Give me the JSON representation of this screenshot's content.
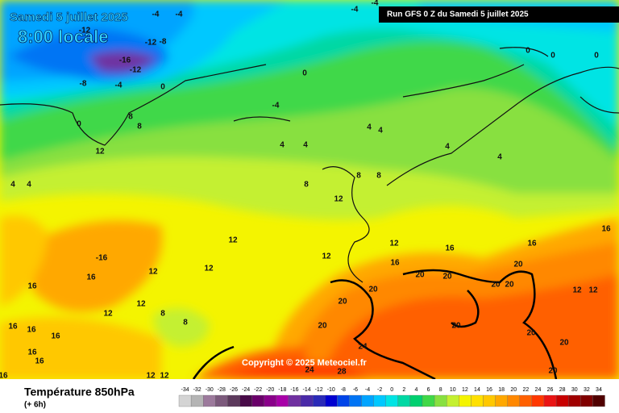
{
  "header": {
    "date": "Samedi 5 juillet 2025",
    "time": "8:00 locale",
    "run": "Run GFS 0 Z du Samedi 5 juillet 2025"
  },
  "copyright": "Copyright © 2025 Meteociel.fr",
  "footer": {
    "title": "Température 850hPa",
    "step": "(+ 6h)"
  },
  "legend": {
    "labels": [
      -34,
      -32,
      -30,
      -28,
      -26,
      -24,
      -22,
      -20,
      -18,
      -16,
      -14,
      -12,
      -10,
      -8,
      -6,
      -4,
      -2,
      0,
      2,
      4,
      6,
      8,
      10,
      12,
      14,
      16,
      18,
      20,
      22,
      24,
      26,
      28,
      30,
      32,
      34
    ],
    "colors": [
      "#d4d4d4",
      "#b4b4b4",
      "#9c7a9c",
      "#7c5a7c",
      "#5c3a5c",
      "#480a48",
      "#6a006a",
      "#8a008a",
      "#a800a8",
      "#7030a0",
      "#4a2aa8",
      "#2a2ab8",
      "#0000d0",
      "#0044e8",
      "#0074f4",
      "#00a4ff",
      "#00c8ff",
      "#00e4e4",
      "#00d8a4",
      "#00d070",
      "#40d848",
      "#88e040",
      "#c4f030",
      "#f4f400",
      "#ffe000",
      "#ffc800",
      "#ffa800",
      "#ff8800",
      "#ff6000",
      "#ff3800",
      "#ea1414",
      "#c80000",
      "#a00000",
      "#800000",
      "#500000"
    ]
  },
  "map_labels": [
    "-4",
    "-4",
    "-12",
    "-12",
    "-8",
    "-16",
    "-12",
    "-8",
    "-4",
    "0",
    "0",
    "-4",
    "-4",
    "0",
    "0",
    "0",
    "-4",
    "0",
    "8",
    "8",
    "12",
    "4",
    "4",
    "4",
    "4",
    "4",
    "4",
    "4",
    "4",
    "8",
    "8",
    "8",
    "12",
    "12",
    "12",
    "12",
    "16",
    "16",
    "16",
    "16",
    "-16",
    "12",
    "12",
    "16",
    "16",
    "20",
    "12",
    "12",
    "20",
    "20",
    "20",
    "20",
    "20",
    "20",
    "12",
    "12",
    "8",
    "8",
    "20",
    "20",
    "20",
    "16",
    "16",
    "16",
    "24",
    "20",
    "16",
    "16",
    "24",
    "28",
    "20",
    "12",
    "12",
    "16"
  ]
}
